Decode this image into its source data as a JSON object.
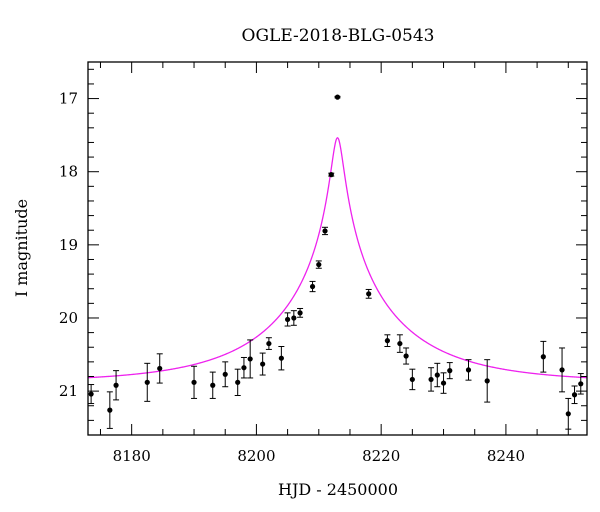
{
  "chart_data": {
    "type": "scatter",
    "title": "OGLE-2018-BLG-0543",
    "xlabel": "HJD - 2450000",
    "ylabel": "I magnitude",
    "xlim": [
      8173,
      8253
    ],
    "ylim": [
      21.6,
      16.5
    ],
    "y_inverted": true,
    "x_ticks": [
      8180,
      8200,
      8220,
      8240
    ],
    "y_ticks": [
      17,
      18,
      19,
      20,
      21
    ],
    "grid": false,
    "colors": {
      "model": "#ee22ee",
      "points": "#000000",
      "axes": "#000000"
    },
    "model": {
      "type": "microlensing-fit",
      "t0": 8213.0,
      "u0": 0.046,
      "tE": 20.0,
      "baseline": 20.88
    },
    "series": [
      {
        "points": [
          {
            "x": 8173.5,
            "y": 21.04,
            "err": 0.13
          },
          {
            "x": 8176.5,
            "y": 21.26,
            "err": 0.25
          },
          {
            "x": 8177.5,
            "y": 20.92,
            "err": 0.2
          },
          {
            "x": 8182.5,
            "y": 20.88,
            "err": 0.26
          },
          {
            "x": 8184.5,
            "y": 20.69,
            "err": 0.2
          },
          {
            "x": 8190.0,
            "y": 20.88,
            "err": 0.22
          },
          {
            "x": 8193.0,
            "y": 20.92,
            "err": 0.18
          },
          {
            "x": 8195.0,
            "y": 20.77,
            "err": 0.17
          },
          {
            "x": 8197.0,
            "y": 20.88,
            "err": 0.18
          },
          {
            "x": 8198.0,
            "y": 20.68,
            "err": 0.14
          },
          {
            "x": 8199.0,
            "y": 20.56,
            "err": 0.26
          },
          {
            "x": 8201.0,
            "y": 20.63,
            "err": 0.15
          },
          {
            "x": 8202.0,
            "y": 20.35,
            "err": 0.08
          },
          {
            "x": 8204.0,
            "y": 20.55,
            "err": 0.16
          },
          {
            "x": 8205.0,
            "y": 20.02,
            "err": 0.09
          },
          {
            "x": 8206.0,
            "y": 20.0,
            "err": 0.1
          },
          {
            "x": 8207.0,
            "y": 19.93,
            "err": 0.06
          },
          {
            "x": 8209.0,
            "y": 19.57,
            "err": 0.07
          },
          {
            "x": 8210.0,
            "y": 19.27,
            "err": 0.05
          },
          {
            "x": 8211.0,
            "y": 18.81,
            "err": 0.05
          },
          {
            "x": 8212.0,
            "y": 18.04,
            "err": 0.02
          },
          {
            "x": 8213.0,
            "y": 16.98,
            "err": 0.01
          },
          {
            "x": 8218.0,
            "y": 19.67,
            "err": 0.06
          },
          {
            "x": 8221.0,
            "y": 20.31,
            "err": 0.08
          },
          {
            "x": 8223.0,
            "y": 20.35,
            "err": 0.12
          },
          {
            "x": 8224.0,
            "y": 20.52,
            "err": 0.11
          },
          {
            "x": 8225.0,
            "y": 20.84,
            "err": 0.14
          },
          {
            "x": 8228.0,
            "y": 20.84,
            "err": 0.16
          },
          {
            "x": 8229.0,
            "y": 20.78,
            "err": 0.16
          },
          {
            "x": 8230.0,
            "y": 20.89,
            "err": 0.14
          },
          {
            "x": 8231.0,
            "y": 20.72,
            "err": 0.11
          },
          {
            "x": 8234.0,
            "y": 20.71,
            "err": 0.14
          },
          {
            "x": 8237.0,
            "y": 20.86,
            "err": 0.29
          },
          {
            "x": 8246.0,
            "y": 20.53,
            "err": 0.21
          },
          {
            "x": 8249.0,
            "y": 20.71,
            "err": 0.3
          },
          {
            "x": 8250.0,
            "y": 21.31,
            "err": 0.21
          },
          {
            "x": 8251.0,
            "y": 21.05,
            "err": 0.12
          },
          {
            "x": 8252.0,
            "y": 20.9,
            "err": 0.14
          }
        ]
      }
    ]
  }
}
